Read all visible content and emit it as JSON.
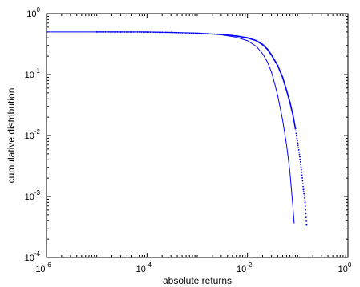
{
  "chart_data": {
    "type": "scatter",
    "title": "",
    "xlabel": "absolute returns",
    "ylabel": "cumulative distribution",
    "xscale": "log",
    "yscale": "log",
    "xlim": [
      1e-06,
      1
    ],
    "ylim": [
      0.0001,
      1
    ],
    "grid": false,
    "legend": "none",
    "x_ticks": [
      {
        "base": "10",
        "exp": "-6",
        "value": 1e-06
      },
      {
        "base": "10",
        "exp": "-4",
        "value": 0.0001
      },
      {
        "base": "10",
        "exp": "-2",
        "value": 0.01
      },
      {
        "base": "10",
        "exp": "0",
        "value": 1
      }
    ],
    "y_ticks": [
      {
        "base": "10",
        "exp": "0",
        "value": 1
      },
      {
        "base": "10",
        "exp": "-1",
        "value": 0.1
      },
      {
        "base": "10",
        "exp": "-2",
        "value": 0.01
      },
      {
        "base": "10",
        "exp": "-3",
        "value": 0.001
      },
      {
        "base": "10",
        "exp": "-4",
        "value": 0.0001
      }
    ],
    "series": [
      {
        "style": "dots",
        "color": "#0000ff",
        "points": [
          [
            1e-05,
            0.5
          ],
          [
            3e-05,
            0.499
          ],
          [
            0.0001,
            0.497
          ],
          [
            0.0003,
            0.49
          ],
          [
            0.001,
            0.475
          ],
          [
            0.003,
            0.455
          ],
          [
            0.006,
            0.43
          ],
          [
            0.01,
            0.4
          ],
          [
            0.015,
            0.36
          ],
          [
            0.02,
            0.31
          ],
          [
            0.025,
            0.26
          ],
          [
            0.03,
            0.21
          ],
          [
            0.04,
            0.14
          ],
          [
            0.05,
            0.09
          ],
          [
            0.06,
            0.055
          ],
          [
            0.07,
            0.035
          ],
          [
            0.08,
            0.022
          ],
          [
            0.09,
            0.013
          ],
          [
            0.1,
            0.0075
          ],
          [
            0.11,
            0.0045
          ],
          [
            0.12,
            0.0025
          ],
          [
            0.13,
            0.0013
          ],
          [
            0.14,
            0.0008
          ],
          [
            0.15,
            0.00034
          ]
        ]
      },
      {
        "style": "line",
        "color": "#0000ff",
        "points": [
          [
            1e-06,
            0.5
          ],
          [
            0.0001,
            0.5
          ],
          [
            0.001,
            0.48
          ],
          [
            0.003,
            0.45
          ],
          [
            0.006,
            0.41
          ],
          [
            0.01,
            0.36
          ],
          [
            0.015,
            0.29
          ],
          [
            0.02,
            0.22
          ],
          [
            0.025,
            0.16
          ],
          [
            0.03,
            0.11
          ],
          [
            0.035,
            0.07
          ],
          [
            0.04,
            0.045
          ],
          [
            0.045,
            0.028
          ],
          [
            0.05,
            0.018
          ],
          [
            0.055,
            0.011
          ],
          [
            0.06,
            0.007
          ],
          [
            0.065,
            0.0042
          ],
          [
            0.07,
            0.0025
          ],
          [
            0.075,
            0.0013
          ],
          [
            0.08,
            0.0007
          ],
          [
            0.085,
            0.00036
          ]
        ]
      }
    ]
  }
}
